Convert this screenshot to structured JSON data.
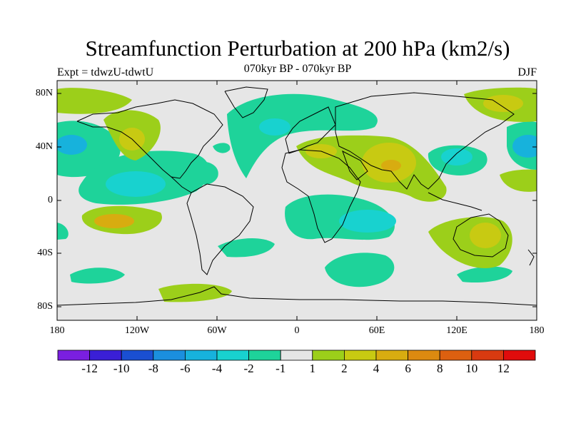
{
  "title": "Streamfunction Perturbation at 200 hPa (km2/s)",
  "experiment": "Expt = tdwzU-tdwtU",
  "period": "070kyr BP - 070kyr BP",
  "season": "DJF",
  "lat_labels": [
    "80N",
    "40N",
    "0",
    "40S",
    "80S"
  ],
  "lon_labels": [
    "180",
    "120W",
    "60W",
    "0",
    "60E",
    "120E",
    "180"
  ],
  "colorbar": {
    "colors": [
      "#7a1fe0",
      "#3a1fd6",
      "#1a4fd2",
      "#1b8fde",
      "#17b2dc",
      "#18d2cf",
      "#1ed39a",
      "#e6e6e6",
      "#9ccf1a",
      "#c8ca12",
      "#d8ac10",
      "#dc8a10",
      "#dc6010",
      "#d83a10",
      "#e00c0c"
    ],
    "labels": [
      "-12",
      "-10",
      "-8",
      "-6",
      "-4",
      "-2",
      "-1",
      "1",
      "2",
      "4",
      "6",
      "8",
      "10",
      "12"
    ]
  },
  "chart_data": {
    "type": "map",
    "title": "Streamfunction Perturbation at 200 hPa (km2/s)",
    "projection": "cylindrical equidistant",
    "lon_range": [
      -180,
      180
    ],
    "lat_range": [
      -90,
      90
    ],
    "contour_levels": [
      -12,
      -10,
      -8,
      -6,
      -4,
      -2,
      -1,
      1,
      2,
      4,
      6,
      8,
      10,
      12
    ]
  }
}
